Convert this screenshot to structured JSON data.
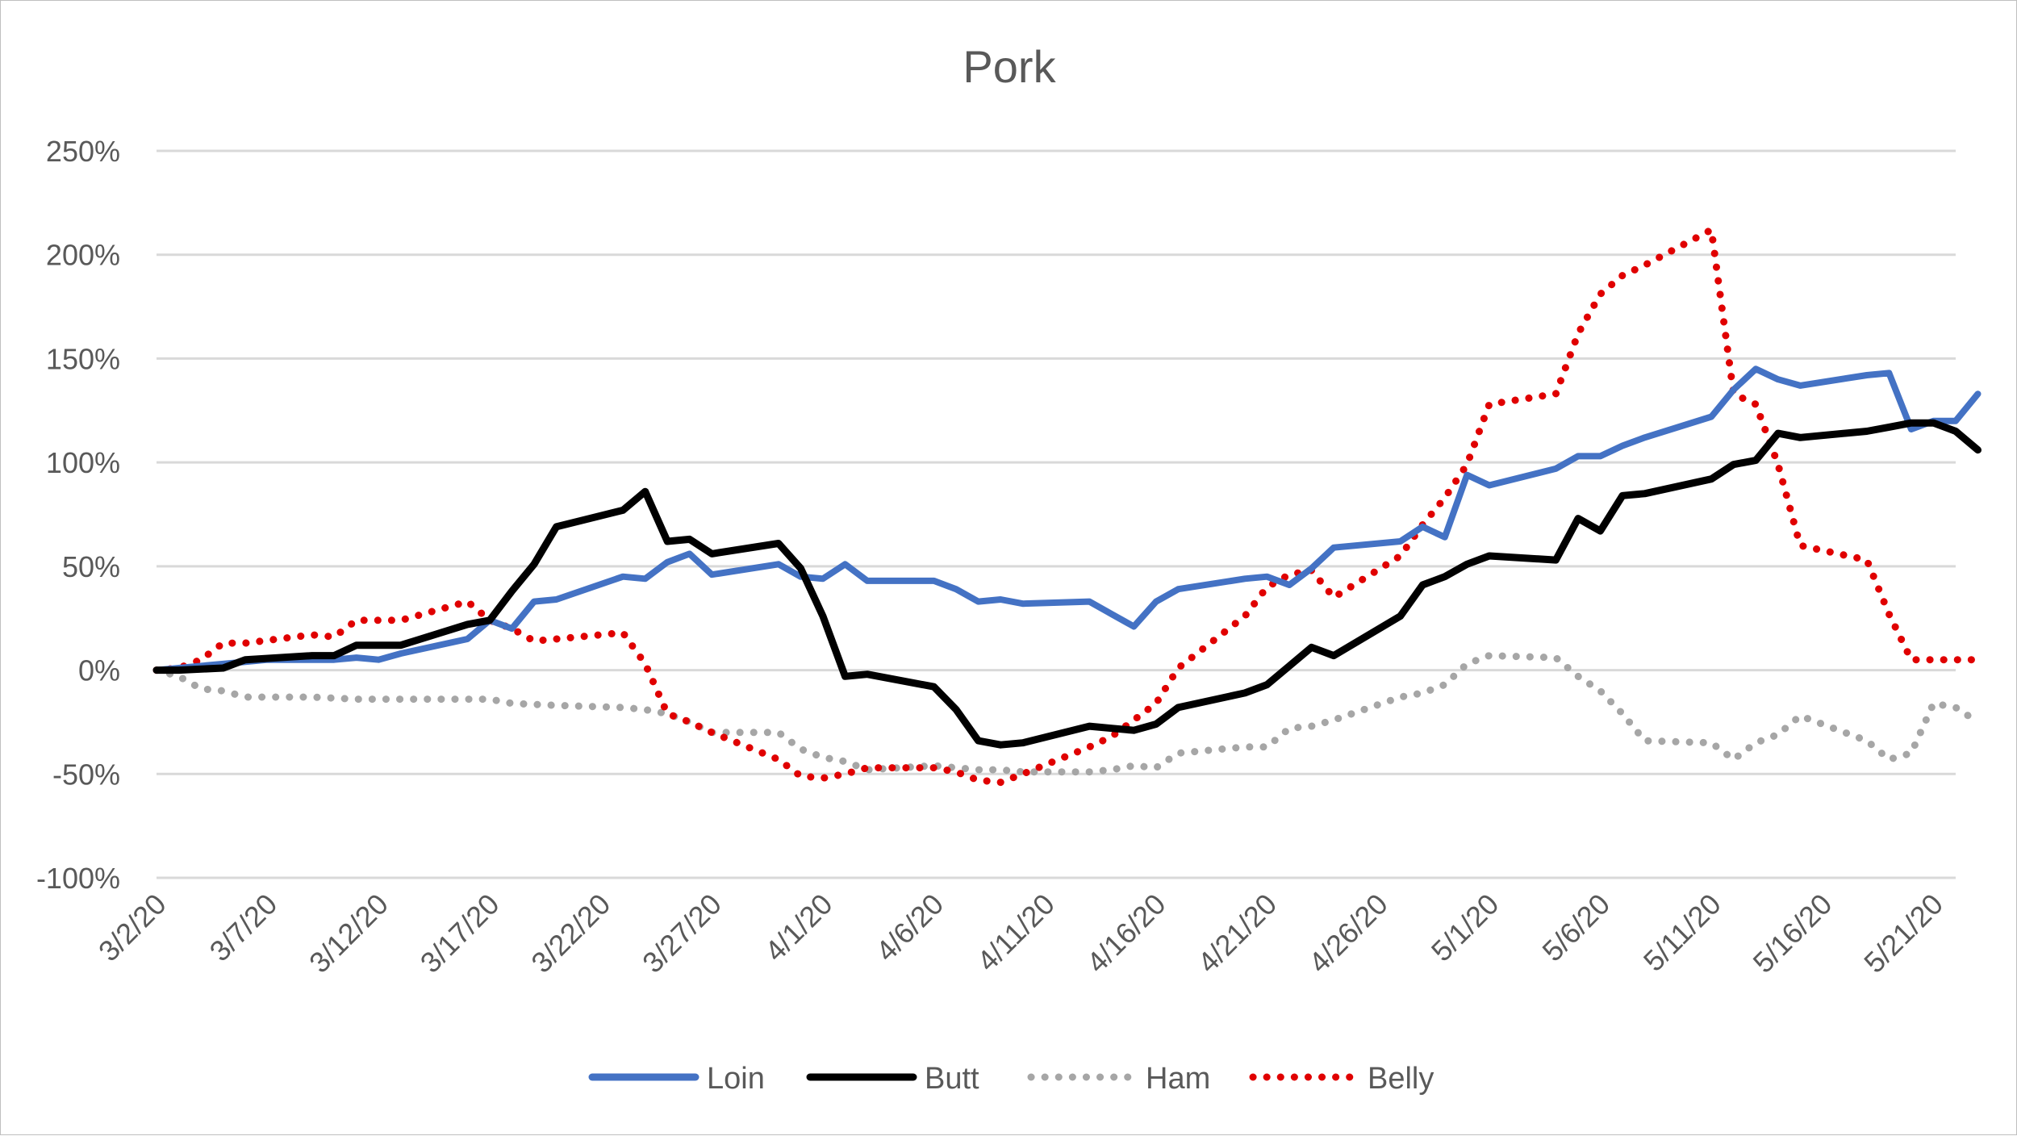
{
  "chart_data": {
    "type": "line",
    "title": "Pork",
    "xlabel": "",
    "ylabel": "",
    "ylim": [
      -100,
      250
    ],
    "y_ticks": [
      250,
      200,
      150,
      100,
      50,
      0,
      -50,
      -100
    ],
    "y_tick_labels": [
      "250%",
      "200%",
      "150%",
      "100%",
      "50%",
      "0%",
      "-50%",
      "-100%"
    ],
    "x_range": [
      "3/2/20",
      "5/22/20"
    ],
    "x_ticks": [
      "3/2/20",
      "3/7/20",
      "3/12/20",
      "3/17/20",
      "3/22/20",
      "3/27/20",
      "4/1/20",
      "4/6/20",
      "4/11/20",
      "4/16/20",
      "4/21/20",
      "4/26/20",
      "5/1/20",
      "5/6/20",
      "5/11/20",
      "5/16/20",
      "5/21/20"
    ],
    "grid": "horizontal",
    "legend_position": "bottom",
    "series": [
      {
        "name": "Loin",
        "color": "#4472c4",
        "style": "solid",
        "points": [
          [
            "3/2/20",
            0
          ],
          [
            "3/3/20",
            1
          ],
          [
            "3/5/20",
            3
          ],
          [
            "3/6/20",
            4
          ],
          [
            "3/7/20",
            5
          ],
          [
            "3/9/20",
            5
          ],
          [
            "3/10/20",
            5
          ],
          [
            "3/11/20",
            6
          ],
          [
            "3/12/20",
            5
          ],
          [
            "3/13/20",
            8
          ],
          [
            "3/16/20",
            15
          ],
          [
            "3/17/20",
            24
          ],
          [
            "3/18/20",
            20
          ],
          [
            "3/19/20",
            33
          ],
          [
            "3/20/20",
            34
          ],
          [
            "3/23/20",
            45
          ],
          [
            "3/24/20",
            44
          ],
          [
            "3/25/20",
            52
          ],
          [
            "3/26/20",
            56
          ],
          [
            "3/27/20",
            46
          ],
          [
            "3/30/20",
            51
          ],
          [
            "3/31/20",
            45
          ],
          [
            "4/1/20",
            44
          ],
          [
            "4/2/20",
            51
          ],
          [
            "4/3/20",
            43
          ],
          [
            "4/6/20",
            43
          ],
          [
            "4/7/20",
            39
          ],
          [
            "4/8/20",
            33
          ],
          [
            "4/9/20",
            34
          ],
          [
            "4/10/20",
            32
          ],
          [
            "4/13/20",
            33
          ],
          [
            "4/14/20",
            27
          ],
          [
            "4/15/20",
            21
          ],
          [
            "4/16/20",
            33
          ],
          [
            "4/17/20",
            39
          ],
          [
            "4/20/20",
            44
          ],
          [
            "4/21/20",
            45
          ],
          [
            "4/22/20",
            41
          ],
          [
            "4/23/20",
            49
          ],
          [
            "4/24/20",
            59
          ],
          [
            "4/27/20",
            62
          ],
          [
            "4/28/20",
            69
          ],
          [
            "4/29/20",
            64
          ],
          [
            "4/30/20",
            94
          ],
          [
            "5/1/20",
            89
          ],
          [
            "5/4/20",
            97
          ],
          [
            "5/5/20",
            103
          ],
          [
            "5/6/20",
            103
          ],
          [
            "5/7/20",
            108
          ],
          [
            "5/8/20",
            112
          ],
          [
            "5/11/20",
            122
          ],
          [
            "5/12/20",
            135
          ],
          [
            "5/13/20",
            145
          ],
          [
            "5/14/20",
            140
          ],
          [
            "5/15/20",
            137
          ],
          [
            "5/18/20",
            142
          ],
          [
            "5/19/20",
            143
          ],
          [
            "5/20/20",
            116
          ],
          [
            "5/21/20",
            120
          ],
          [
            "5/22/20",
            120
          ],
          [
            "5/23/20",
            133
          ]
        ]
      },
      {
        "name": "Butt",
        "color": "#000000",
        "style": "solid",
        "points": [
          [
            "3/2/20",
            0
          ],
          [
            "3/3/20",
            0
          ],
          [
            "3/5/20",
            1
          ],
          [
            "3/6/20",
            5
          ],
          [
            "3/9/20",
            7
          ],
          [
            "3/10/20",
            7
          ],
          [
            "3/11/20",
            12
          ],
          [
            "3/12/20",
            12
          ],
          [
            "3/13/20",
            12
          ],
          [
            "3/16/20",
            22
          ],
          [
            "3/17/20",
            24
          ],
          [
            "3/18/20",
            38
          ],
          [
            "3/19/20",
            51
          ],
          [
            "3/20/20",
            69
          ],
          [
            "3/23/20",
            77
          ],
          [
            "3/24/20",
            86
          ],
          [
            "3/25/20",
            62
          ],
          [
            "3/26/20",
            63
          ],
          [
            "3/27/20",
            56
          ],
          [
            "3/30/20",
            61
          ],
          [
            "3/31/20",
            49
          ],
          [
            "4/1/20",
            26
          ],
          [
            "4/2/20",
            -3
          ],
          [
            "4/3/20",
            -2
          ],
          [
            "4/6/20",
            -8
          ],
          [
            "4/7/20",
            -19
          ],
          [
            "4/8/20",
            -34
          ],
          [
            "4/9/20",
            -36
          ],
          [
            "4/10/20",
            -35
          ],
          [
            "4/13/20",
            -27
          ],
          [
            "4/14/20",
            -28
          ],
          [
            "4/15/20",
            -29
          ],
          [
            "4/16/20",
            -26
          ],
          [
            "4/17/20",
            -18
          ],
          [
            "4/20/20",
            -11
          ],
          [
            "4/21/20",
            -7
          ],
          [
            "4/22/20",
            2
          ],
          [
            "4/23/20",
            11
          ],
          [
            "4/24/20",
            7
          ],
          [
            "4/27/20",
            26
          ],
          [
            "4/28/20",
            41
          ],
          [
            "4/29/20",
            45
          ],
          [
            "4/30/20",
            51
          ],
          [
            "5/1/20",
            55
          ],
          [
            "5/4/20",
            53
          ],
          [
            "5/5/20",
            73
          ],
          [
            "5/6/20",
            67
          ],
          [
            "5/7/20",
            84
          ],
          [
            "5/8/20",
            85
          ],
          [
            "5/11/20",
            92
          ],
          [
            "5/12/20",
            99
          ],
          [
            "5/13/20",
            101
          ],
          [
            "5/14/20",
            114
          ],
          [
            "5/15/20",
            112
          ],
          [
            "5/18/20",
            115
          ],
          [
            "5/19/20",
            117
          ],
          [
            "5/20/20",
            119
          ],
          [
            "5/21/20",
            119
          ],
          [
            "5/22/20",
            115
          ],
          [
            "5/23/20",
            106
          ]
        ]
      },
      {
        "name": "Ham",
        "color": "#a6a6a6",
        "style": "dotted",
        "points": [
          [
            "3/2/20",
            0
          ],
          [
            "3/3/20",
            -3
          ],
          [
            "3/4/20",
            -9
          ],
          [
            "3/5/20",
            -10
          ],
          [
            "3/6/20",
            -13
          ],
          [
            "3/9/20",
            -13
          ],
          [
            "3/11/20",
            -14
          ],
          [
            "3/12/20",
            -14
          ],
          [
            "3/13/20",
            -14
          ],
          [
            "3/16/20",
            -14
          ],
          [
            "3/17/20",
            -14
          ],
          [
            "3/18/20",
            -16
          ],
          [
            "3/20/20",
            -17
          ],
          [
            "3/23/20",
            -18
          ],
          [
            "3/24/20",
            -19
          ],
          [
            "3/25/20",
            -21
          ],
          [
            "3/26/20",
            -25
          ],
          [
            "3/27/20",
            -30
          ],
          [
            "3/30/20",
            -30
          ],
          [
            "3/31/20",
            -38
          ],
          [
            "4/1/20",
            -42
          ],
          [
            "4/2/20",
            -44
          ],
          [
            "4/3/20",
            -48
          ],
          [
            "4/6/20",
            -46
          ],
          [
            "4/7/20",
            -47
          ],
          [
            "4/8/20",
            -48
          ],
          [
            "4/9/20",
            -48
          ],
          [
            "4/10/20",
            -49
          ],
          [
            "4/13/20",
            -49
          ],
          [
            "4/14/20",
            -48
          ],
          [
            "4/15/20",
            -46
          ],
          [
            "4/16/20",
            -47
          ],
          [
            "4/17/20",
            -40
          ],
          [
            "4/20/20",
            -37
          ],
          [
            "4/21/20",
            -37
          ],
          [
            "4/22/20",
            -28
          ],
          [
            "4/23/20",
            -27
          ],
          [
            "4/24/20",
            -24
          ],
          [
            "4/27/20",
            -13
          ],
          [
            "4/28/20",
            -11
          ],
          [
            "4/29/20",
            -7
          ],
          [
            "4/30/20",
            3
          ],
          [
            "5/1/20",
            7
          ],
          [
            "5/4/20",
            6
          ],
          [
            "5/5/20",
            -3
          ],
          [
            "5/6/20",
            -10
          ],
          [
            "5/7/20",
            -21
          ],
          [
            "5/8/20",
            -34
          ],
          [
            "5/11/20",
            -35
          ],
          [
            "5/12/20",
            -43
          ],
          [
            "5/13/20",
            -35
          ],
          [
            "5/14/20",
            -31
          ],
          [
            "5/15/20",
            -22
          ],
          [
            "5/18/20",
            -34
          ],
          [
            "5/19/20",
            -43
          ],
          [
            "5/20/20",
            -40
          ],
          [
            "5/21/20",
            -16
          ],
          [
            "5/22/20",
            -18
          ],
          [
            "5/23/20",
            -25
          ]
        ]
      },
      {
        "name": "Belly",
        "color": "#e00000",
        "style": "dotted",
        "points": [
          [
            "3/2/20",
            0
          ],
          [
            "3/3/20",
            1
          ],
          [
            "3/4/20",
            5
          ],
          [
            "3/5/20",
            13
          ],
          [
            "3/6/20",
            13
          ],
          [
            "3/9/20",
            17
          ],
          [
            "3/10/20",
            16
          ],
          [
            "3/11/20",
            24
          ],
          [
            "3/12/20",
            24
          ],
          [
            "3/13/20",
            24
          ],
          [
            "3/16/20",
            33
          ],
          [
            "3/17/20",
            24
          ],
          [
            "3/18/20",
            20
          ],
          [
            "3/19/20",
            14
          ],
          [
            "3/20/20",
            15
          ],
          [
            "3/23/20",
            18
          ],
          [
            "3/24/20",
            3
          ],
          [
            "3/25/20",
            -21
          ],
          [
            "3/26/20",
            -25
          ],
          [
            "3/27/20",
            -30
          ],
          [
            "3/30/20",
            -43
          ],
          [
            "3/31/20",
            -51
          ],
          [
            "4/1/20",
            -52
          ],
          [
            "4/2/20",
            -50
          ],
          [
            "4/3/20",
            -47
          ],
          [
            "4/6/20",
            -47
          ],
          [
            "4/7/20",
            -49
          ],
          [
            "4/8/20",
            -53
          ],
          [
            "4/9/20",
            -54
          ],
          [
            "4/10/20",
            -50
          ],
          [
            "4/13/20",
            -37
          ],
          [
            "4/14/20",
            -32
          ],
          [
            "4/15/20",
            -24
          ],
          [
            "4/16/20",
            -16
          ],
          [
            "4/17/20",
            1
          ],
          [
            "4/20/20",
            26
          ],
          [
            "4/21/20",
            40
          ],
          [
            "4/22/20",
            46
          ],
          [
            "4/23/20",
            48
          ],
          [
            "4/24/20",
            35
          ],
          [
            "4/27/20",
            55
          ],
          [
            "4/28/20",
            70
          ],
          [
            "4/29/20",
            83
          ],
          [
            "4/30/20",
            99
          ],
          [
            "5/1/20",
            128
          ],
          [
            "5/4/20",
            133
          ],
          [
            "5/5/20",
            162
          ],
          [
            "5/6/20",
            181
          ],
          [
            "5/7/20",
            190
          ],
          [
            "5/8/20",
            195
          ],
          [
            "5/11/20",
            212
          ],
          [
            "5/12/20",
            133
          ],
          [
            "5/13/20",
            128
          ],
          [
            "5/14/20",
            99
          ],
          [
            "5/15/20",
            60
          ],
          [
            "5/18/20",
            53
          ],
          [
            "5/19/20",
            27
          ],
          [
            "5/20/20",
            5
          ],
          [
            "5/21/20",
            5
          ],
          [
            "5/22/20",
            5
          ],
          [
            "5/23/20",
            5
          ]
        ]
      }
    ]
  }
}
